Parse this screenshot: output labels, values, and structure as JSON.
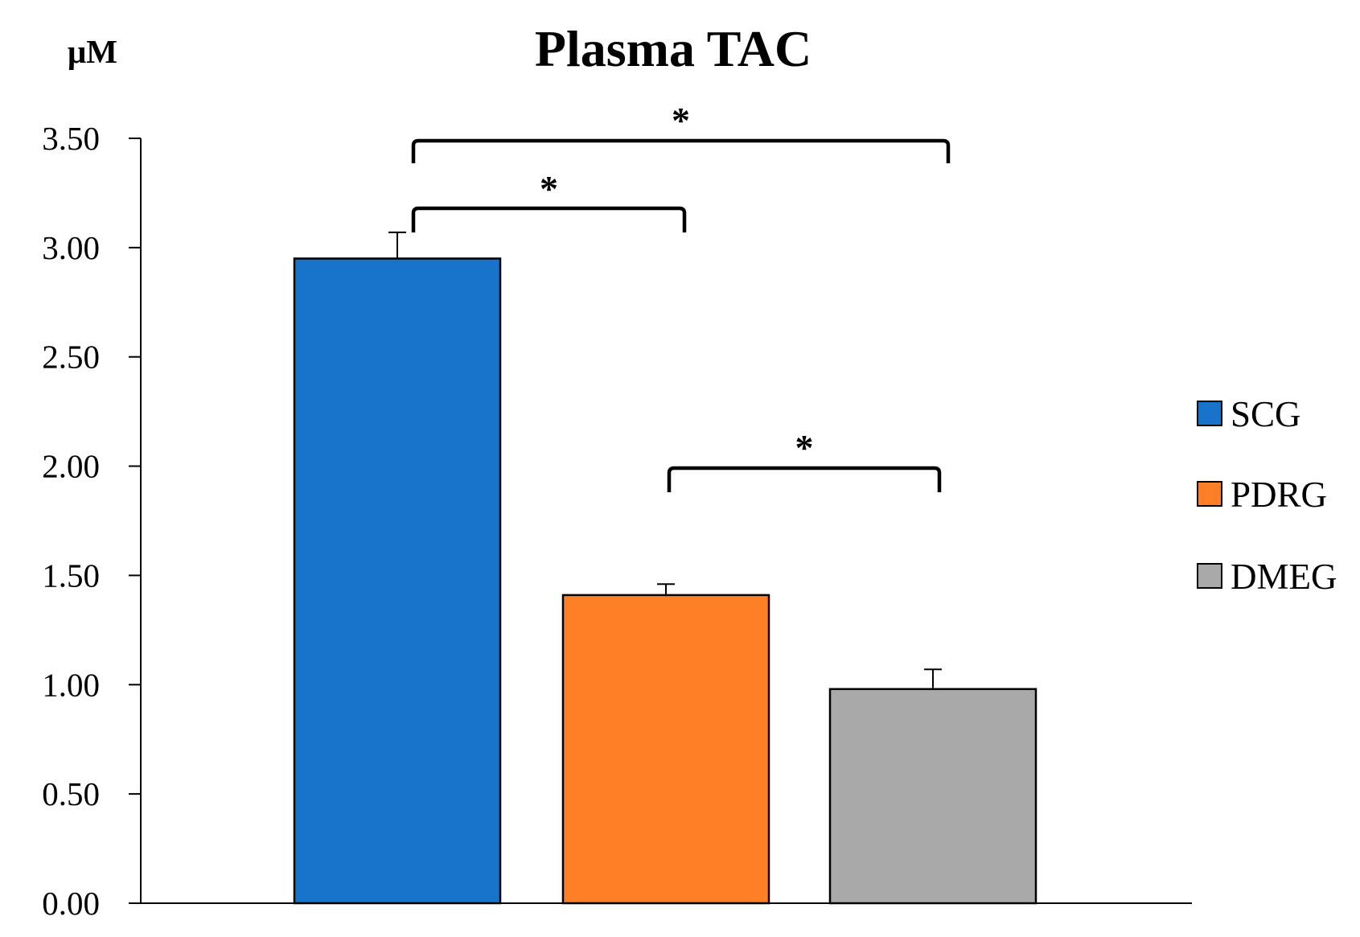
{
  "chart_data": {
    "type": "bar",
    "title": "Plasma TAC",
    "ylabel": "μM",
    "xlabel": "",
    "ylim": [
      0,
      3.5
    ],
    "yticks": [
      "0.00",
      "0.50",
      "1.00",
      "1.50",
      "2.00",
      "2.50",
      "3.00",
      "3.50"
    ],
    "categories": [
      "SCG",
      "PDRG",
      "DMEG"
    ],
    "values": [
      2.95,
      1.41,
      0.98
    ],
    "errors": [
      0.12,
      0.05,
      0.09
    ],
    "colors": [
      "#1874CB",
      "#FF7F27",
      "#A9A9A9"
    ],
    "legend": {
      "position": "right",
      "entries": [
        "SCG",
        "PDRG",
        "DMEG"
      ]
    },
    "significance": [
      {
        "groups": [
          "SCG",
          "DMEG"
        ],
        "label": "*"
      },
      {
        "groups": [
          "SCG",
          "PDRG"
        ],
        "label": "*"
      },
      {
        "groups": [
          "PDRG",
          "DMEG"
        ],
        "label": "*"
      }
    ],
    "grid": false
  }
}
